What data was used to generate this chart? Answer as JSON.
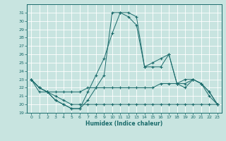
{
  "xlabel": "Humidex (Indice chaleur)",
  "background_color": "#c8e4e0",
  "grid_color": "#ffffff",
  "line_color": "#1a6b6b",
  "xlim": [
    -0.5,
    23.5
  ],
  "ylim": [
    19,
    32
  ],
  "yticks": [
    19,
    20,
    21,
    22,
    23,
    24,
    25,
    26,
    27,
    28,
    29,
    30,
    31
  ],
  "xticks": [
    0,
    1,
    2,
    3,
    4,
    5,
    6,
    7,
    8,
    9,
    10,
    11,
    12,
    13,
    14,
    15,
    16,
    17,
    18,
    19,
    20,
    21,
    22,
    23
  ],
  "lines": [
    {
      "x": [
        0,
        1,
        2,
        3,
        4,
        5,
        6,
        7,
        8,
        9,
        10,
        11,
        12,
        13,
        14,
        15,
        16,
        17,
        18,
        19,
        20,
        21,
        22,
        23
      ],
      "y": [
        23,
        21.5,
        21.5,
        20.5,
        20,
        19.5,
        19.5,
        20.5,
        22,
        23.5,
        31,
        31,
        30.5,
        29.5,
        24.5,
        25,
        25.5,
        26,
        22.5,
        22,
        23,
        22.5,
        21,
        20
      ]
    },
    {
      "x": [
        0,
        1,
        2,
        3,
        4,
        5,
        6,
        7,
        8,
        9,
        10,
        11,
        12,
        13,
        14,
        15,
        16,
        17,
        18,
        19,
        20,
        21,
        22,
        23
      ],
      "y": [
        23,
        22,
        21.5,
        21.5,
        21.5,
        21.5,
        21.5,
        22,
        22,
        22,
        22,
        22,
        22,
        22,
        22,
        22,
        22.5,
        22.5,
        22.5,
        23,
        23,
        22.5,
        21.5,
        20
      ]
    },
    {
      "x": [
        0,
        1,
        2,
        3,
        4,
        5,
        6,
        7,
        8,
        9,
        10,
        11,
        12,
        13,
        14,
        15,
        16,
        17,
        18,
        19,
        20,
        21,
        22,
        23
      ],
      "y": [
        23,
        22,
        21.5,
        21,
        20.5,
        20,
        20,
        20,
        20,
        20,
        20,
        20,
        20,
        20,
        20,
        20,
        20,
        20,
        20,
        20,
        20,
        20,
        20,
        20
      ]
    },
    {
      "x": [
        0,
        1,
        2,
        3,
        4,
        5,
        6,
        7,
        8,
        9,
        10,
        11,
        12,
        13,
        14,
        15,
        16,
        17,
        18,
        19,
        20,
        21,
        22,
        23
      ],
      "y": [
        23,
        22,
        21.5,
        20.5,
        20,
        19.5,
        19.5,
        21.5,
        23.5,
        25.5,
        28.5,
        31,
        31,
        30.5,
        24.5,
        24.5,
        24.5,
        26,
        22.5,
        22.5,
        23,
        22.5,
        21.5,
        20
      ]
    }
  ]
}
